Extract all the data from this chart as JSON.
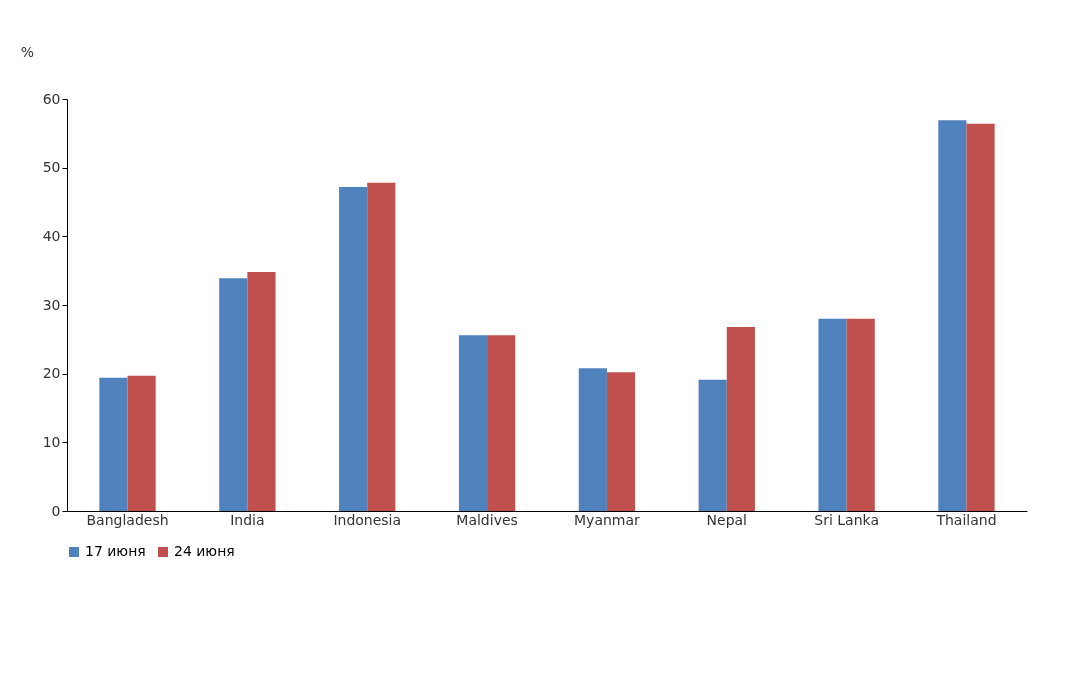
{
  "chart_data": {
    "type": "bar",
    "ylabel": "%",
    "categories": [
      "Bangladesh",
      "India",
      "Indonesia",
      "Maldives",
      "Myanmar",
      "Nepal",
      "Sri Lanka",
      "Thailand"
    ],
    "series": [
      {
        "name": "17 июня",
        "color": "#4f81bd",
        "values": [
          19.4,
          33.9,
          47.2,
          25.6,
          20.8,
          19.1,
          28.0,
          56.9
        ]
      },
      {
        "name": "24 июня",
        "color": "#c0504d",
        "values": [
          19.7,
          34.8,
          47.8,
          25.6,
          20.2,
          26.8,
          28.0,
          56.4
        ]
      }
    ],
    "ylim": [
      0,
      60
    ],
    "yticks": [
      0,
      10,
      20,
      30,
      40,
      50,
      60
    ],
    "grid": false,
    "legend": "bottom"
  }
}
